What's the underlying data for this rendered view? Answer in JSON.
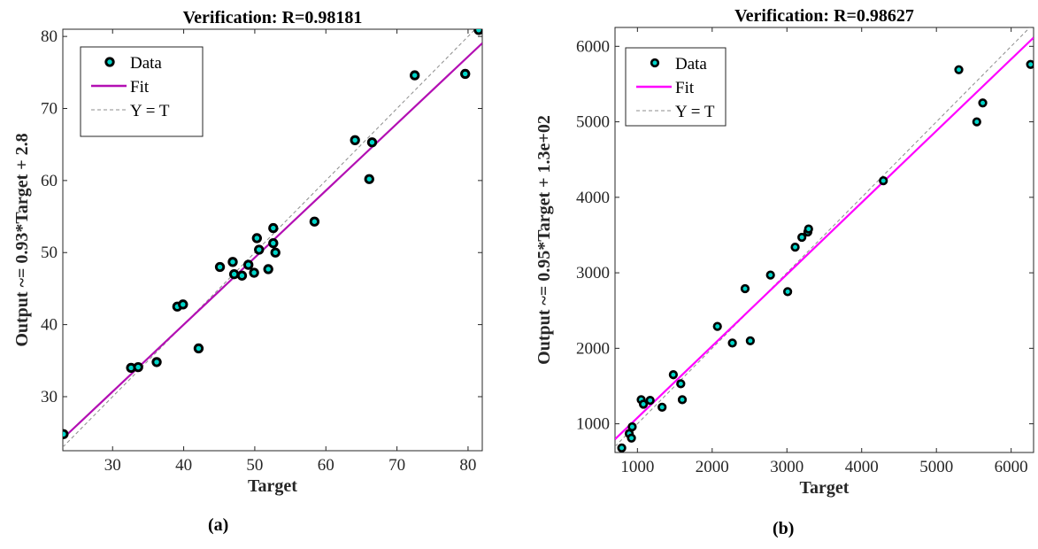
{
  "captions": {
    "a": "(a)",
    "b": "(b)"
  },
  "chart_data": [
    {
      "type": "scatter",
      "title": "Verification: R=0.98181",
      "xlabel": "Target",
      "ylabel": "Output ~= 0.93*Target + 2.8",
      "xlim": [
        23,
        82
      ],
      "ylim": [
        22.5,
        81
      ],
      "xticks": [
        30,
        40,
        50,
        60,
        70,
        80
      ],
      "yticks": [
        30,
        40,
        50,
        60,
        70,
        80
      ],
      "grid": false,
      "legend_position": "top-left",
      "legend": [
        "Data",
        "Fit",
        "Y = T"
      ],
      "fit": {
        "slope": 0.93,
        "intercept": 2.8,
        "color": "#b30fb3"
      },
      "points": [
        [
          23.1,
          24.8
        ],
        [
          32.6,
          34.0
        ],
        [
          33.6,
          34.1
        ],
        [
          36.2,
          34.8
        ],
        [
          39.1,
          42.5
        ],
        [
          39.9,
          42.8
        ],
        [
          42.1,
          36.7
        ],
        [
          45.1,
          48.0
        ],
        [
          46.9,
          48.7
        ],
        [
          47.1,
          47.0
        ],
        [
          48.2,
          46.8
        ],
        [
          49.1,
          48.3
        ],
        [
          49.9,
          47.2
        ],
        [
          50.3,
          52.0
        ],
        [
          50.6,
          50.4
        ],
        [
          51.9,
          47.7
        ],
        [
          52.6,
          53.4
        ],
        [
          52.6,
          51.3
        ],
        [
          52.9,
          50.0
        ],
        [
          58.4,
          54.3
        ],
        [
          64.1,
          65.6
        ],
        [
          66.1,
          60.2
        ],
        [
          66.5,
          65.3
        ],
        [
          72.5,
          74.6
        ],
        [
          79.6,
          74.8
        ],
        [
          81.5,
          80.9
        ]
      ]
    },
    {
      "type": "scatter",
      "title": "Verification: R=0.98627",
      "xlabel": "Target",
      "ylabel": "Output ~= 0.95*Target + 1.3e+02",
      "xlim": [
        700,
        6300
      ],
      "ylim": [
        620,
        6250
      ],
      "xticks": [
        1000,
        2000,
        3000,
        4000,
        5000,
        6000
      ],
      "yticks": [
        1000,
        2000,
        3000,
        4000,
        5000,
        6000
      ],
      "grid": false,
      "legend_position": "top-left",
      "legend": [
        "Data",
        "Fit",
        "Y = T"
      ],
      "fit": {
        "slope": 0.95,
        "intercept": 130,
        "color": "#ff00ff"
      },
      "points": [
        [
          790,
          680
        ],
        [
          890,
          870
        ],
        [
          920,
          810
        ],
        [
          930,
          960
        ],
        [
          1050,
          1320
        ],
        [
          1080,
          1260
        ],
        [
          1170,
          1310
        ],
        [
          1330,
          1220
        ],
        [
          1480,
          1650
        ],
        [
          1580,
          1530
        ],
        [
          1600,
          1320
        ],
        [
          2070,
          2290
        ],
        [
          2270,
          2070
        ],
        [
          2440,
          2790
        ],
        [
          2510,
          2100
        ],
        [
          2780,
          2970
        ],
        [
          3010,
          2750
        ],
        [
          3110,
          3340
        ],
        [
          3200,
          3470
        ],
        [
          3280,
          3540
        ],
        [
          3290,
          3580
        ],
        [
          4290,
          4220
        ],
        [
          5300,
          5690
        ],
        [
          5540,
          5000
        ],
        [
          5620,
          5250
        ],
        [
          6260,
          5760
        ]
      ]
    }
  ]
}
